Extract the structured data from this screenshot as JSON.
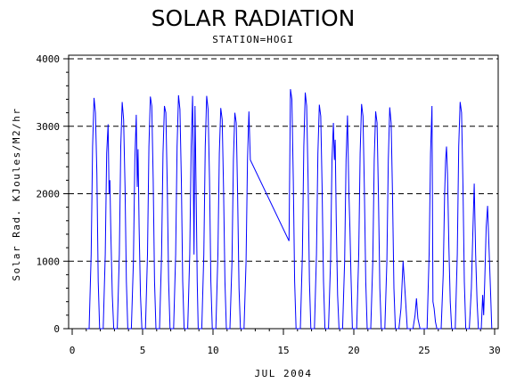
{
  "chart_data": {
    "type": "line",
    "title": "SOLAR RADIATION",
    "subtitle": "STATION=HOGI",
    "xlabel": "JUL 2004",
    "ylabel": "Solar Rad. KJoules/M2/hr",
    "xlim": [
      0,
      30
    ],
    "ylim": [
      0,
      4000
    ],
    "x_ticks": [
      0,
      5,
      10,
      15,
      20,
      25,
      30
    ],
    "y_ticks": [
      0,
      1000,
      2000,
      3000,
      4000
    ],
    "grid": "dashed horizontal at y ticks",
    "series": [
      {
        "color": "#0000ff",
        "points": [
          [
            1.0,
            0
          ],
          [
            1.2,
            0
          ],
          [
            1.35,
            1100
          ],
          [
            1.45,
            2700
          ],
          [
            1.55,
            3420
          ],
          [
            1.65,
            3200
          ],
          [
            1.75,
            2300
          ],
          [
            1.85,
            700
          ],
          [
            1.95,
            0
          ],
          [
            2.2,
            0
          ],
          [
            2.35,
            1100
          ],
          [
            2.45,
            2600
          ],
          [
            2.55,
            3030
          ],
          [
            2.62,
            2000
          ],
          [
            2.68,
            2200
          ],
          [
            2.75,
            1400
          ],
          [
            2.85,
            500
          ],
          [
            2.95,
            0
          ],
          [
            3.2,
            0
          ],
          [
            3.35,
            1100
          ],
          [
            3.45,
            2700
          ],
          [
            3.55,
            3360
          ],
          [
            3.65,
            3100
          ],
          [
            3.75,
            2100
          ],
          [
            3.85,
            700
          ],
          [
            3.95,
            0
          ],
          [
            4.2,
            0
          ],
          [
            4.35,
            1000
          ],
          [
            4.45,
            2500
          ],
          [
            4.55,
            3170
          ],
          [
            4.62,
            2100
          ],
          [
            4.68,
            2660
          ],
          [
            4.75,
            1500
          ],
          [
            4.85,
            500
          ],
          [
            4.95,
            0
          ],
          [
            5.2,
            0
          ],
          [
            5.35,
            1100
          ],
          [
            5.45,
            2700
          ],
          [
            5.55,
            3440
          ],
          [
            5.65,
            3300
          ],
          [
            5.75,
            2200
          ],
          [
            5.85,
            700
          ],
          [
            5.95,
            0
          ],
          [
            6.2,
            0
          ],
          [
            6.35,
            1100
          ],
          [
            6.45,
            2600
          ],
          [
            6.55,
            3300
          ],
          [
            6.65,
            3200
          ],
          [
            6.75,
            2100
          ],
          [
            6.85,
            700
          ],
          [
            6.95,
            0
          ],
          [
            7.2,
            0
          ],
          [
            7.35,
            1100
          ],
          [
            7.45,
            2700
          ],
          [
            7.55,
            3460
          ],
          [
            7.65,
            3250
          ],
          [
            7.75,
            2200
          ],
          [
            7.85,
            700
          ],
          [
            7.95,
            0
          ],
          [
            8.2,
            0
          ],
          [
            8.35,
            1100
          ],
          [
            8.45,
            2700
          ],
          [
            8.55,
            3450
          ],
          [
            8.65,
            1100
          ],
          [
            8.72,
            3300
          ],
          [
            8.8,
            2100
          ],
          [
            8.88,
            700
          ],
          [
            8.95,
            0
          ],
          [
            9.2,
            0
          ],
          [
            9.35,
            1100
          ],
          [
            9.45,
            2700
          ],
          [
            9.55,
            3450
          ],
          [
            9.65,
            3250
          ],
          [
            9.75,
            2200
          ],
          [
            9.85,
            700
          ],
          [
            9.95,
            0
          ],
          [
            10.2,
            0
          ],
          [
            10.35,
            1100
          ],
          [
            10.45,
            2600
          ],
          [
            10.55,
            3270
          ],
          [
            10.65,
            3100
          ],
          [
            10.75,
            2100
          ],
          [
            10.85,
            700
          ],
          [
            10.95,
            0
          ],
          [
            11.2,
            0
          ],
          [
            11.35,
            1000
          ],
          [
            11.45,
            2500
          ],
          [
            11.55,
            3200
          ],
          [
            11.65,
            3050
          ],
          [
            11.75,
            2000
          ],
          [
            11.85,
            600
          ],
          [
            11.95,
            0
          ],
          [
            12.2,
            0
          ],
          [
            12.35,
            1000
          ],
          [
            12.45,
            2500
          ],
          [
            12.55,
            3220
          ],
          [
            12.65,
            2500
          ],
          [
            15.4,
            1300
          ],
          [
            15.5,
            3550
          ],
          [
            15.6,
            3400
          ],
          [
            15.7,
            2200
          ],
          [
            15.8,
            700
          ],
          [
            15.9,
            0
          ],
          [
            16.2,
            0
          ],
          [
            16.35,
            1100
          ],
          [
            16.45,
            2700
          ],
          [
            16.55,
            3500
          ],
          [
            16.65,
            3300
          ],
          [
            16.75,
            2200
          ],
          [
            16.85,
            700
          ],
          [
            16.95,
            0
          ],
          [
            17.2,
            0
          ],
          [
            17.35,
            1100
          ],
          [
            17.45,
            2600
          ],
          [
            17.55,
            3320
          ],
          [
            17.65,
            3150
          ],
          [
            17.75,
            2100
          ],
          [
            17.85,
            700
          ],
          [
            17.95,
            0
          ],
          [
            18.2,
            0
          ],
          [
            18.35,
            1000
          ],
          [
            18.45,
            2500
          ],
          [
            18.55,
            3050
          ],
          [
            18.62,
            2500
          ],
          [
            18.68,
            2800
          ],
          [
            18.75,
            1600
          ],
          [
            18.85,
            500
          ],
          [
            18.95,
            0
          ],
          [
            19.2,
            0
          ],
          [
            19.35,
            1000
          ],
          [
            19.45,
            2500
          ],
          [
            19.55,
            3160
          ],
          [
            19.65,
            2000
          ],
          [
            19.72,
            1500
          ],
          [
            19.8,
            800
          ],
          [
            19.9,
            0
          ],
          [
            20.2,
            0
          ],
          [
            20.35,
            1100
          ],
          [
            20.45,
            2600
          ],
          [
            20.55,
            3330
          ],
          [
            20.65,
            3150
          ],
          [
            20.75,
            2100
          ],
          [
            20.85,
            700
          ],
          [
            20.95,
            0
          ],
          [
            21.2,
            0
          ],
          [
            21.35,
            1000
          ],
          [
            21.45,
            2500
          ],
          [
            21.55,
            3220
          ],
          [
            21.65,
            3050
          ],
          [
            21.75,
            2000
          ],
          [
            21.85,
            600
          ],
          [
            21.95,
            0
          ],
          [
            22.2,
            0
          ],
          [
            22.35,
            1000
          ],
          [
            22.45,
            2500
          ],
          [
            22.55,
            3280
          ],
          [
            22.65,
            3050
          ],
          [
            22.75,
            2000
          ],
          [
            22.85,
            600
          ],
          [
            22.95,
            0
          ],
          [
            23.2,
            0
          ],
          [
            23.35,
            300
          ],
          [
            23.5,
            1000
          ],
          [
            23.65,
            500
          ],
          [
            23.8,
            0
          ],
          [
            24.2,
            0
          ],
          [
            24.35,
            200
          ],
          [
            24.45,
            450
          ],
          [
            24.55,
            150
          ],
          [
            24.7,
            0
          ],
          [
            25.2,
            0
          ],
          [
            25.35,
            1100
          ],
          [
            25.45,
            2600
          ],
          [
            25.55,
            3300
          ],
          [
            25.62,
            400
          ],
          [
            25.7,
            300
          ],
          [
            25.8,
            100
          ],
          [
            25.9,
            0
          ],
          [
            26.2,
            0
          ],
          [
            26.35,
            800
          ],
          [
            26.45,
            2000
          ],
          [
            26.52,
            2500
          ],
          [
            26.58,
            2700
          ],
          [
            26.65,
            2300
          ],
          [
            26.75,
            1200
          ],
          [
            26.85,
            400
          ],
          [
            26.95,
            0
          ],
          [
            27.2,
            0
          ],
          [
            27.35,
            1100
          ],
          [
            27.45,
            2700
          ],
          [
            27.55,
            3360
          ],
          [
            27.65,
            3200
          ],
          [
            27.75,
            2100
          ],
          [
            27.85,
            700
          ],
          [
            27.95,
            0
          ],
          [
            28.2,
            0
          ],
          [
            28.35,
            600
          ],
          [
            28.45,
            1400
          ],
          [
            28.55,
            2150
          ],
          [
            28.65,
            1100
          ],
          [
            28.75,
            400
          ],
          [
            28.85,
            0
          ],
          [
            29.05,
            0
          ],
          [
            29.15,
            500
          ],
          [
            29.22,
            200
          ],
          [
            29.3,
            700
          ],
          [
            29.4,
            1500
          ],
          [
            29.5,
            1820
          ],
          [
            29.6,
            1200
          ],
          [
            29.7,
            600
          ],
          [
            29.8,
            0
          ]
        ]
      }
    ]
  }
}
